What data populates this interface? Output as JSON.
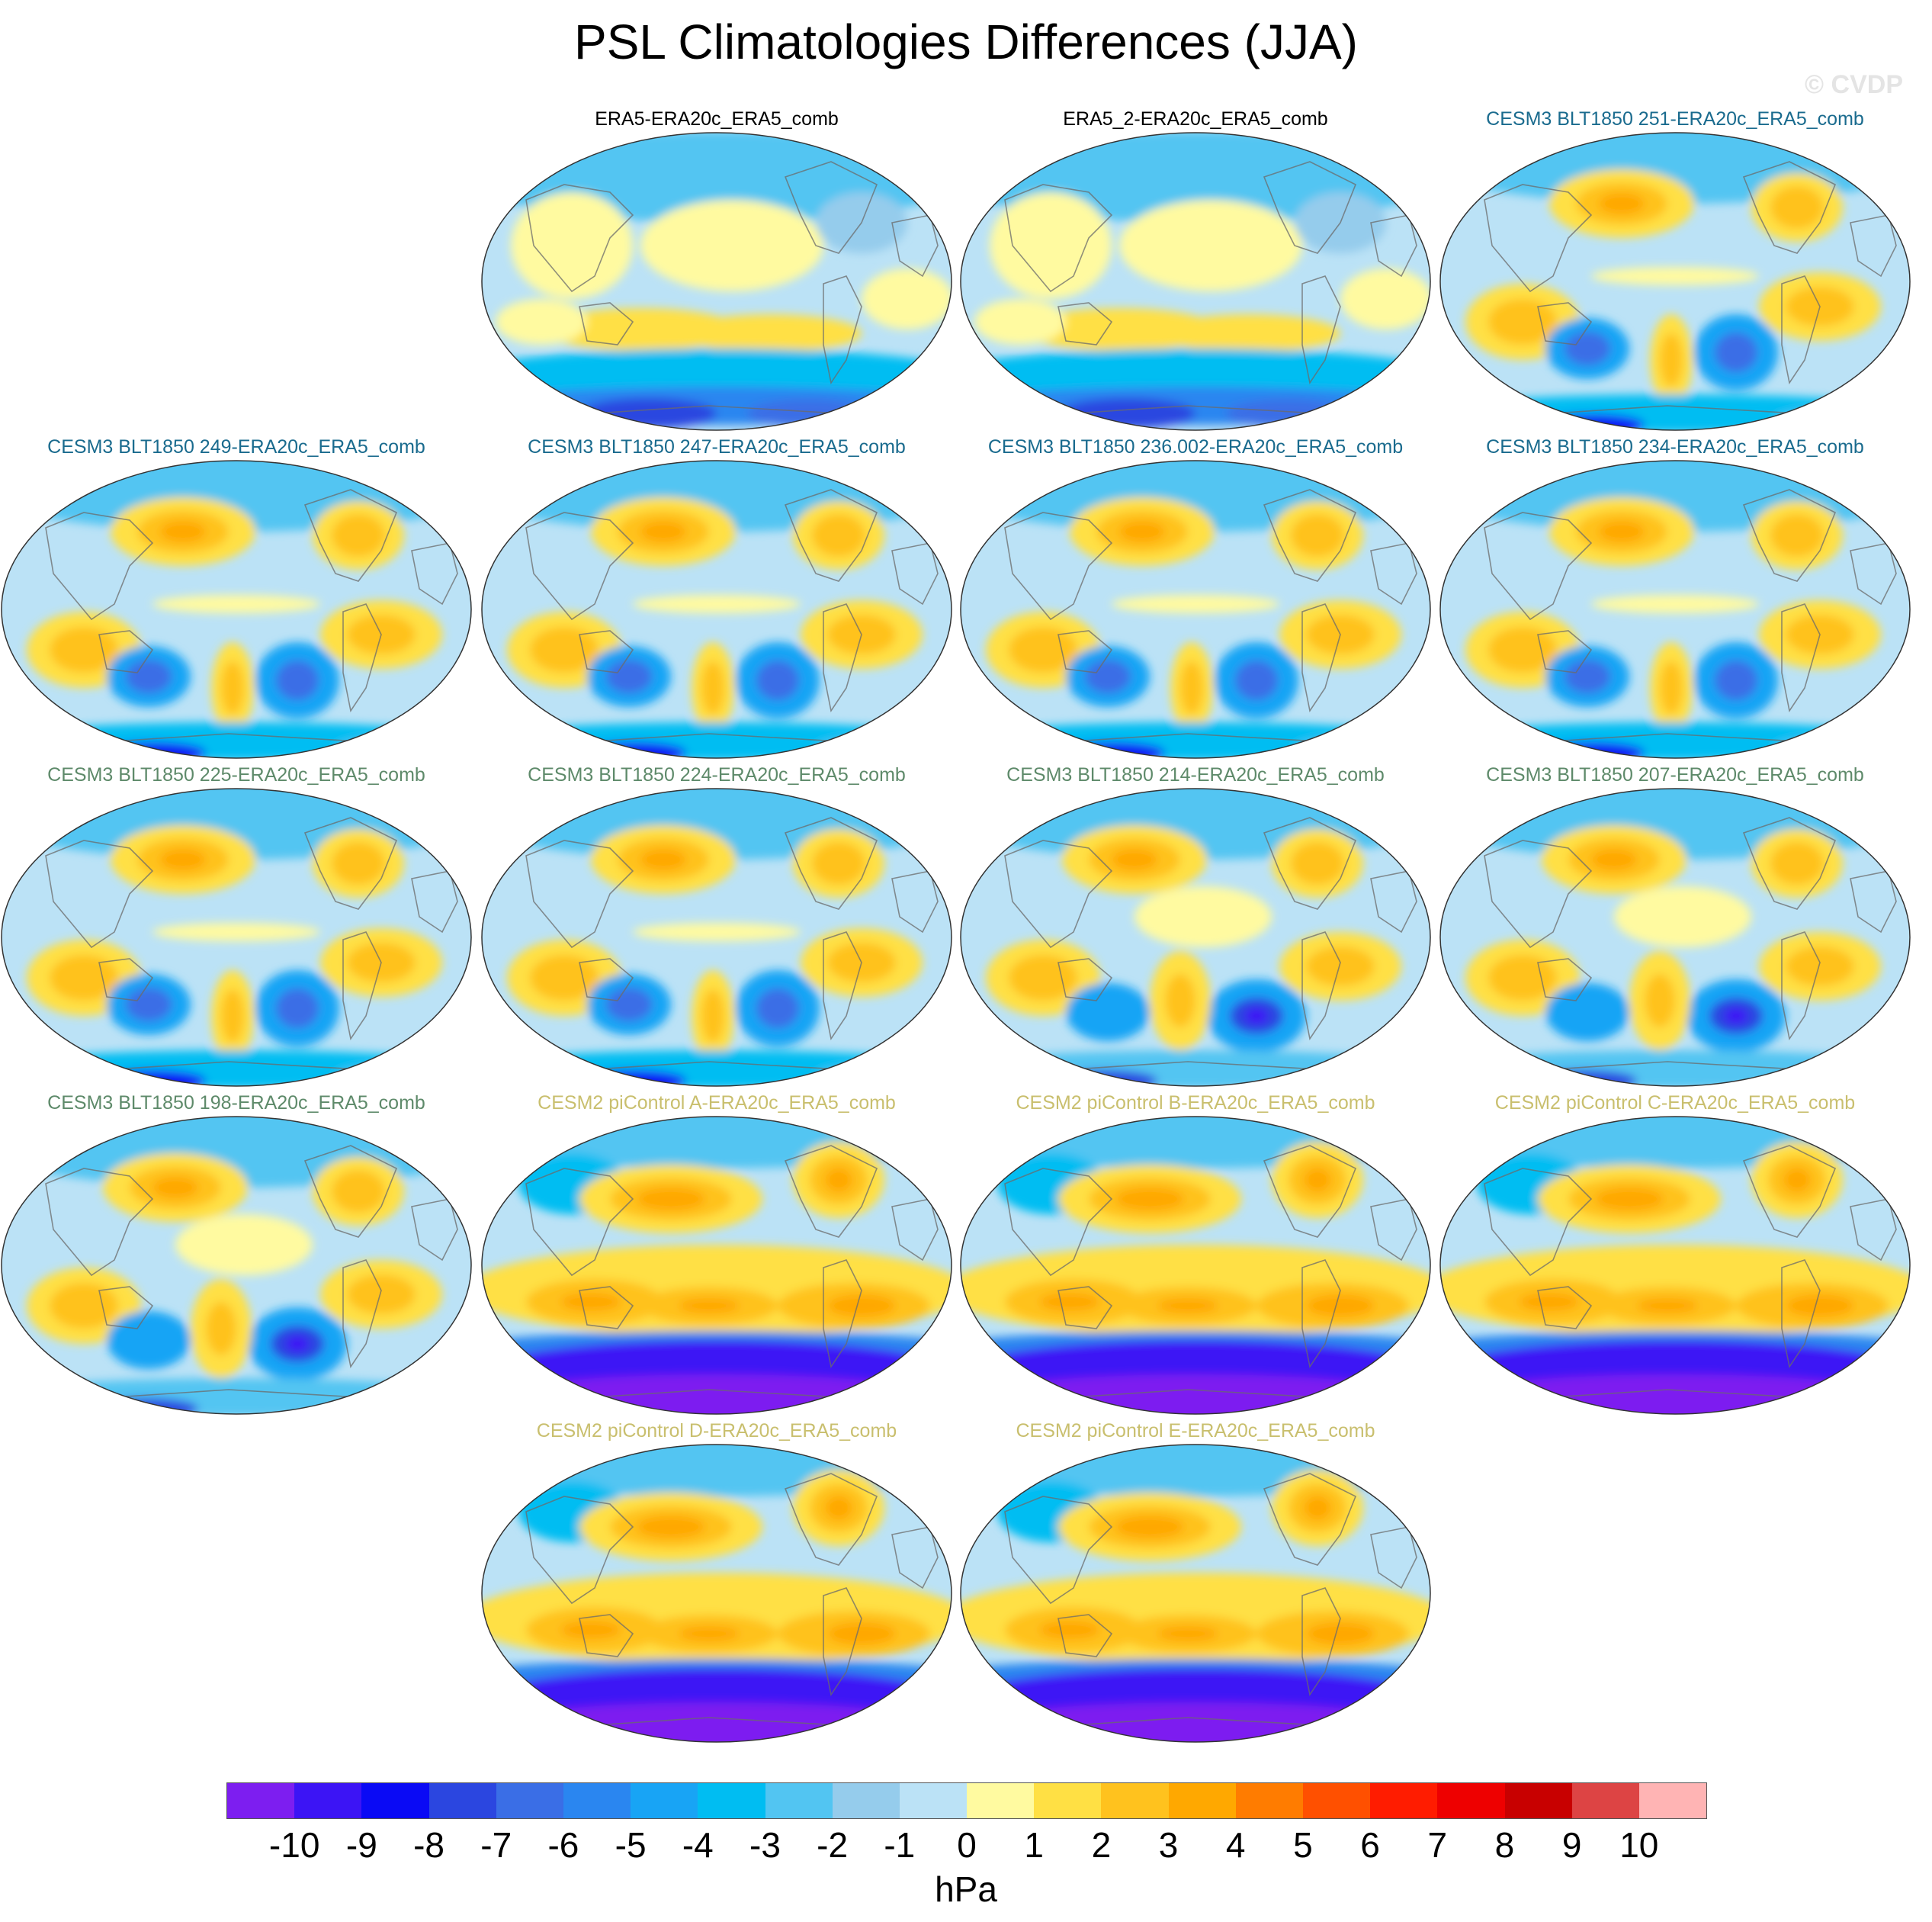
{
  "figure": {
    "title": "PSL Climatologies Differences (JJA)",
    "watermark": "© CVDP"
  },
  "title_colors": {
    "obs": "#000000",
    "cesm3_a": "#1a6b8e",
    "cesm3_b": "#5e8a6a",
    "cesm2": "#c9bf6e"
  },
  "panels": [
    {
      "title": "ERA5-ERA20c_ERA5_comb",
      "group": "obs",
      "pattern": "obs"
    },
    {
      "title": "ERA5_2-ERA20c_ERA5_comb",
      "group": "obs",
      "pattern": "obs"
    },
    {
      "title": "CESM3 BLT1850 251-ERA20c_ERA5_comb",
      "group": "cesm3_a",
      "pattern": "cesm3"
    },
    {
      "title": "CESM3 BLT1850 249-ERA20c_ERA5_comb",
      "group": "cesm3_a",
      "pattern": "cesm3"
    },
    {
      "title": "CESM3 BLT1850 247-ERA20c_ERA5_comb",
      "group": "cesm3_a",
      "pattern": "cesm3"
    },
    {
      "title": "CESM3 BLT1850 236.002-ERA20c_ERA5_comb",
      "group": "cesm3_a",
      "pattern": "cesm3"
    },
    {
      "title": "CESM3 BLT1850 234-ERA20c_ERA5_comb",
      "group": "cesm3_a",
      "pattern": "cesm3"
    },
    {
      "title": "CESM3 BLT1850 225-ERA20c_ERA5_comb",
      "group": "cesm3_b",
      "pattern": "cesm3"
    },
    {
      "title": "CESM3 BLT1850 224-ERA20c_ERA5_comb",
      "group": "cesm3_b",
      "pattern": "cesm3"
    },
    {
      "title": "CESM3 BLT1850 214-ERA20c_ERA5_comb",
      "group": "cesm3_b",
      "pattern": "cesm3b"
    },
    {
      "title": "CESM3 BLT1850 207-ERA20c_ERA5_comb",
      "group": "cesm3_b",
      "pattern": "cesm3b"
    },
    {
      "title": "CESM3 BLT1850 198-ERA20c_ERA5_comb",
      "group": "cesm3_b",
      "pattern": "cesm3b"
    },
    {
      "title": "CESM2 piControl A-ERA20c_ERA5_comb",
      "group": "cesm2",
      "pattern": "cesm2"
    },
    {
      "title": "CESM2 piControl B-ERA20c_ERA5_comb",
      "group": "cesm2",
      "pattern": "cesm2"
    },
    {
      "title": "CESM2 piControl C-ERA20c_ERA5_comb",
      "group": "cesm2",
      "pattern": "cesm2"
    },
    {
      "title": "CESM2 piControl D-ERA20c_ERA5_comb",
      "group": "cesm2",
      "pattern": "cesm2"
    },
    {
      "title": "CESM2 piControl E-ERA20c_ERA5_comb",
      "group": "cesm2",
      "pattern": "cesm2"
    }
  ],
  "colorbar": {
    "colors": [
      "#7d1ef0",
      "#3c14f5",
      "#0a0af5",
      "#2b46e0",
      "#3a6ee6",
      "#2a86f0",
      "#18a4f5",
      "#00bdf2",
      "#52c5f2",
      "#95ccec",
      "#bbe2f6",
      "#fffaa0",
      "#ffe044",
      "#ffc21e",
      "#ffa800",
      "#ff7c00",
      "#ff5000",
      "#ff1c00",
      "#ee0000",
      "#c80000",
      "#dd4444",
      "#ffb4b4"
    ],
    "ticks": [
      "-10",
      "-9",
      "-8",
      "-7",
      "-6",
      "-5",
      "-4",
      "-3",
      "-2",
      "-1",
      "0",
      "1",
      "2",
      "3",
      "4",
      "5",
      "6",
      "7",
      "8",
      "9",
      "10"
    ],
    "units": "hPa"
  }
}
